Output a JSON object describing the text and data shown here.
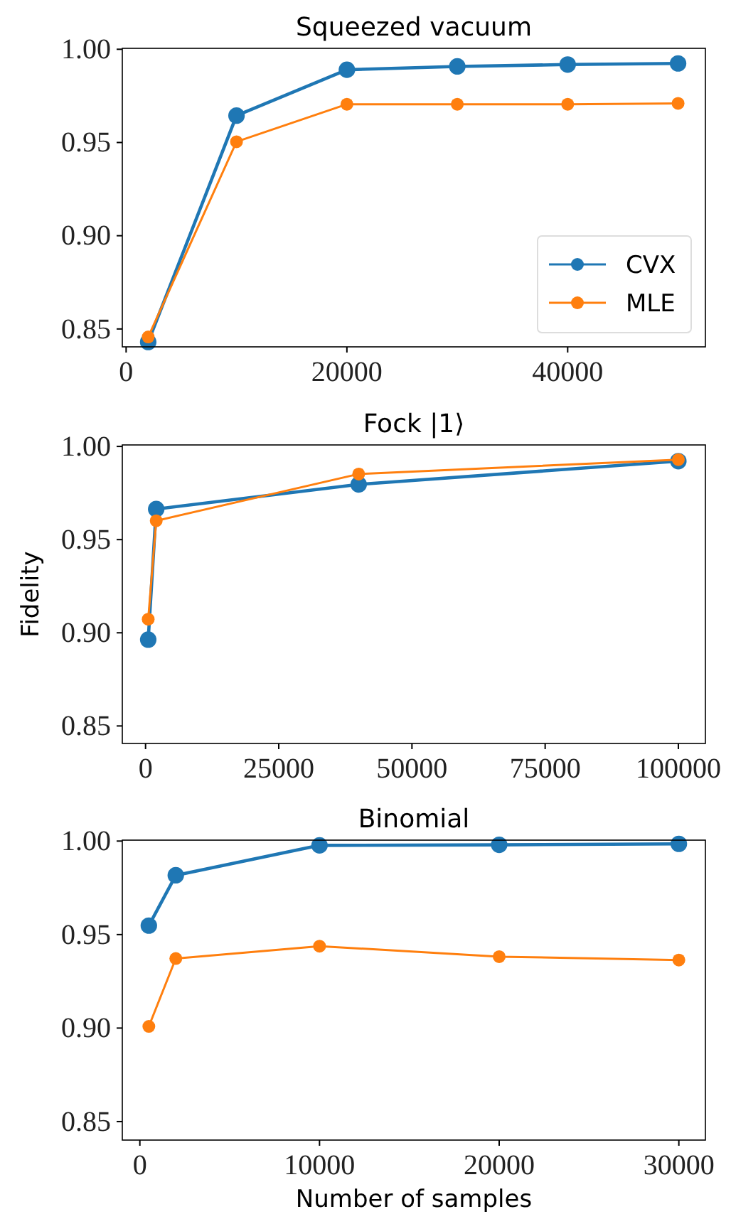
{
  "chart_data": [
    {
      "type": "line",
      "title": "Squeezed vacuum",
      "xlim": [
        -345,
        52475
      ],
      "xticks": [
        0,
        20000,
        40000
      ],
      "ylim": [
        0.8404,
        1.0005
      ],
      "yticks": [
        {
          "value": 0.85,
          "label": "0.85"
        },
        {
          "value": 0.9,
          "label": "0.90"
        },
        {
          "value": 0.95,
          "label": "0.95"
        },
        {
          "value": 1.0,
          "label": "1.00"
        }
      ],
      "x": [
        2000,
        10000,
        20000,
        30000,
        40000,
        50000
      ],
      "marker": "circle",
      "legend": "bottom right",
      "grid": false,
      "series": [
        {
          "name": "CVX",
          "color": "#1f77b4",
          "values": [
            0.843,
            0.9644,
            0.989,
            0.9908,
            0.9918,
            0.9924
          ]
        },
        {
          "name": "MLE",
          "color": "#ff7f0e",
          "values": [
            0.8457,
            0.9504,
            0.9705,
            0.9705,
            0.9705,
            0.971
          ]
        }
      ]
    },
    {
      "type": "line",
      "title": "Fock |1⟩",
      "ylabel": "Fidelity",
      "xlim": [
        -4363,
        105076
      ],
      "xticks": [
        0,
        25000,
        50000,
        75000,
        100000
      ],
      "ylim": [
        0.8406,
        1.0008
      ],
      "yticks": [
        {
          "value": 0.85,
          "label": "0.85"
        },
        {
          "value": 0.9,
          "label": "0.90"
        },
        {
          "value": 0.95,
          "label": "0.95"
        },
        {
          "value": 1.0,
          "label": "1.00"
        }
      ],
      "x": [
        500,
        2000,
        40000,
        100000
      ],
      "marker": "circle",
      "grid": false,
      "series": [
        {
          "color": "#1f77b4",
          "values": [
            0.8963,
            0.9664,
            0.9796,
            0.9921
          ]
        },
        {
          "color": "#ff7f0e",
          "values": [
            0.9073,
            0.9601,
            0.9852,
            0.9929
          ]
        }
      ]
    },
    {
      "type": "line",
      "title": "Binomial",
      "xlabel": "Number of samples",
      "xlim": [
        -977,
        31478
      ],
      "xticks": [
        0,
        10000,
        20000,
        30000
      ],
      "ylim": [
        0.8401,
        1.0005
      ],
      "yticks": [
        {
          "value": 0.85,
          "label": "0.85"
        },
        {
          "value": 0.9,
          "label": "0.90"
        },
        {
          "value": 0.95,
          "label": "0.95"
        },
        {
          "value": 1.0,
          "label": "1.00"
        }
      ],
      "x": [
        500,
        2000,
        10000,
        20000,
        30000
      ],
      "marker": "circle",
      "grid": false,
      "series": [
        {
          "color": "#1f77b4",
          "values": [
            0.9548,
            0.9817,
            0.9977,
            0.998,
            0.9985
          ]
        },
        {
          "color": "#ff7f0e",
          "values": [
            0.9009,
            0.9372,
            0.9438,
            0.9382,
            0.9364
          ]
        }
      ]
    }
  ]
}
